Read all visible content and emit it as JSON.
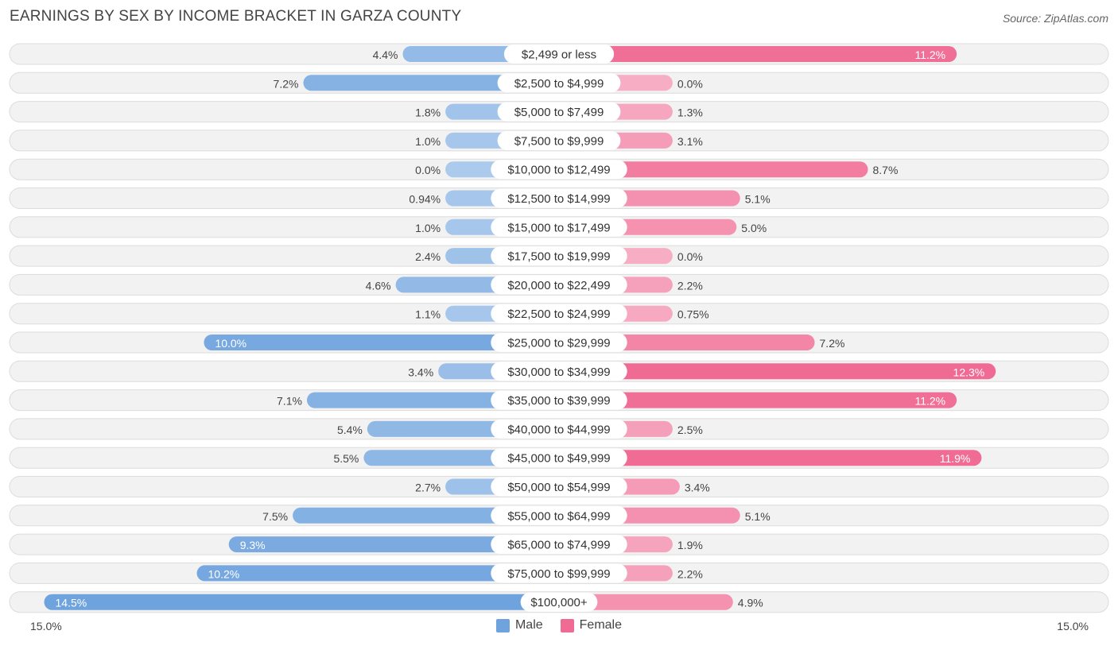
{
  "title": "EARNINGS BY SEX BY INCOME BRACKET IN GARZA COUNTY",
  "source": "Source: ZipAtlas.com",
  "colors": {
    "male": "#6fa3de",
    "male_light": "#a8c8ec",
    "female": "#f06b94",
    "female_light": "#f6a8c0",
    "row_bg": "#f2f2f2",
    "row_border": "#dcdcdc"
  },
  "legend": {
    "male": "Male",
    "female": "Female"
  },
  "axis": {
    "left_label": "15.0%",
    "right_label": "15.0%"
  },
  "chart_data": {
    "type": "bar",
    "orientation": "horizontal-diverging",
    "title": "EARNINGS BY SEX BY INCOME BRACKET IN GARZA COUNTY",
    "xlim": [
      -15.0,
      15.0
    ],
    "unit": "%",
    "categories": [
      "$2,499 or less",
      "$2,500 to $4,999",
      "$5,000 to $7,499",
      "$7,500 to $9,999",
      "$10,000 to $12,499",
      "$12,500 to $14,999",
      "$15,000 to $17,499",
      "$17,500 to $19,999",
      "$20,000 to $22,499",
      "$22,500 to $24,999",
      "$25,000 to $29,999",
      "$30,000 to $34,999",
      "$35,000 to $39,999",
      "$40,000 to $44,999",
      "$45,000 to $49,999",
      "$50,000 to $54,999",
      "$55,000 to $64,999",
      "$65,000 to $74,999",
      "$75,000 to $99,999",
      "$100,000+"
    ],
    "series": [
      {
        "name": "Male",
        "values": [
          4.4,
          7.2,
          1.8,
          1.0,
          0.0,
          0.94,
          1.0,
          2.4,
          4.6,
          1.1,
          10.0,
          3.4,
          7.1,
          5.4,
          5.5,
          2.7,
          7.5,
          9.3,
          10.2,
          14.5
        ],
        "labels": [
          "4.4%",
          "7.2%",
          "1.8%",
          "1.0%",
          "0.0%",
          "0.94%",
          "1.0%",
          "2.4%",
          "4.6%",
          "1.1%",
          "10.0%",
          "3.4%",
          "7.1%",
          "5.4%",
          "5.5%",
          "2.7%",
          "7.5%",
          "9.3%",
          "10.2%",
          "14.5%"
        ]
      },
      {
        "name": "Female",
        "values": [
          11.2,
          0.0,
          1.3,
          3.1,
          8.7,
          5.1,
          5.0,
          0.0,
          2.2,
          0.75,
          7.2,
          12.3,
          11.2,
          2.5,
          11.9,
          3.4,
          5.1,
          1.9,
          2.2,
          4.9
        ],
        "labels": [
          "11.2%",
          "0.0%",
          "1.3%",
          "3.1%",
          "8.7%",
          "5.1%",
          "5.0%",
          "0.0%",
          "2.2%",
          "0.75%",
          "7.2%",
          "12.3%",
          "11.2%",
          "2.5%",
          "11.9%",
          "3.4%",
          "5.1%",
          "1.9%",
          "2.2%",
          "4.9%"
        ]
      }
    ]
  }
}
